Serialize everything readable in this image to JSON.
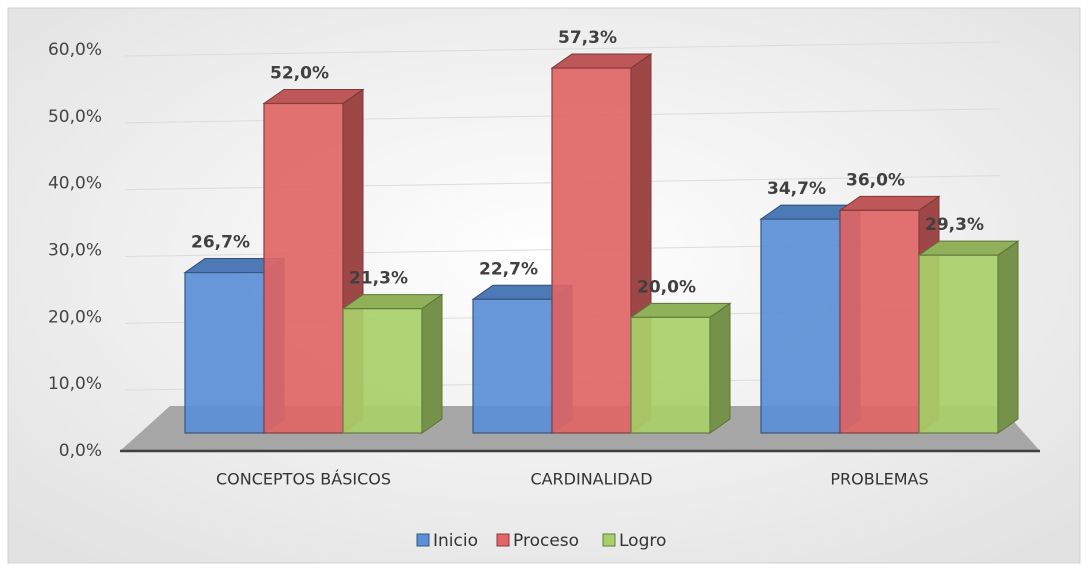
{
  "chart_data": {
    "type": "bar3d",
    "categories": [
      "CONCEPTOS BÁSICOS",
      "CARDINALIDAD",
      "PROBLEMAS"
    ],
    "series": [
      {
        "name": "Inicio",
        "color": "#5b8fd6",
        "values": [
          26.7,
          22.7,
          34.7
        ],
        "value_labels": [
          "26,7%",
          "22,7%",
          "34,7%"
        ]
      },
      {
        "name": "Proceso",
        "color": "#e06666",
        "values": [
          52.0,
          57.3,
          36.0
        ],
        "value_labels": [
          "52,0%",
          "57,3%",
          "36,0%"
        ]
      },
      {
        "name": "Logro",
        "color": "#a9cf6a",
        "values": [
          21.3,
          20.0,
          29.3
        ],
        "value_labels": [
          "21,3%",
          "20,0%",
          "29,3%"
        ]
      }
    ],
    "ylim": [
      0,
      60
    ],
    "yticks": [
      {
        "value": 0,
        "label": "0,0%"
      },
      {
        "value": 10,
        "label": "10,0%"
      },
      {
        "value": 20,
        "label": "20,0%"
      },
      {
        "value": 30,
        "label": "30,0%"
      },
      {
        "value": 40,
        "label": "40,0%"
      },
      {
        "value": 50,
        "label": "50,0%"
      },
      {
        "value": 60,
        "label": "60,0%"
      }
    ],
    "grid": true,
    "legend": "bottom"
  }
}
